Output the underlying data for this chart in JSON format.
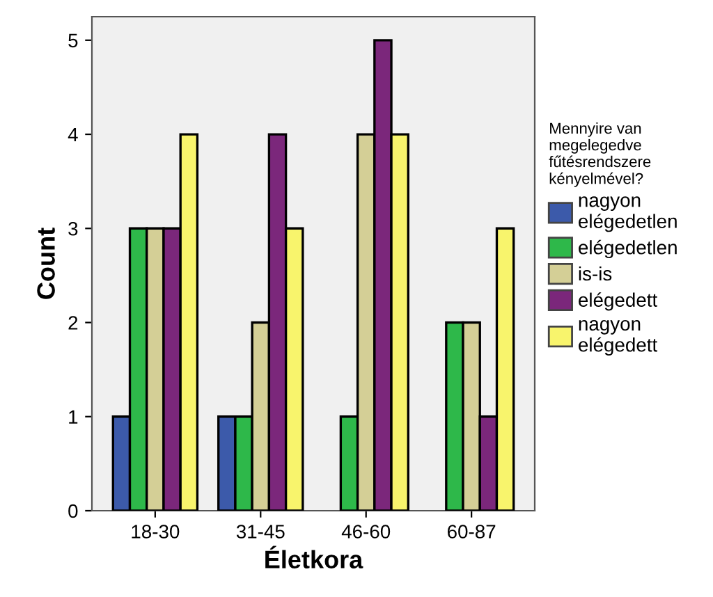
{
  "chart_data": {
    "type": "bar",
    "xlabel": "Életkora",
    "ylabel": "Count",
    "legend_title": "Mennyire van\nmegelegedve\nfűtésrendszere\nkényelmével?",
    "categories": [
      "18-30",
      "31-45",
      "46-60",
      "60-87"
    ],
    "series": [
      {
        "name": "nagyon\nelégedetlen",
        "color": "#3c5aaa",
        "values": [
          1,
          1,
          null,
          null
        ]
      },
      {
        "name": "elégedetlen",
        "color": "#2eb84a",
        "values": [
          3,
          1,
          1,
          2
        ]
      },
      {
        "name": "is-is",
        "color": "#d4cf96",
        "values": [
          3,
          2,
          4,
          2
        ]
      },
      {
        "name": "elégedett",
        "color": "#7b277b",
        "values": [
          3,
          4,
          5,
          1
        ]
      },
      {
        "name": "nagyon\nelégedett",
        "color": "#f8f46c",
        "values": [
          4,
          3,
          4,
          3
        ]
      }
    ],
    "ylim": [
      0,
      5.25
    ],
    "yticks": [
      0,
      1,
      2,
      3,
      4,
      5
    ],
    "grid": false,
    "legend": "right"
  }
}
